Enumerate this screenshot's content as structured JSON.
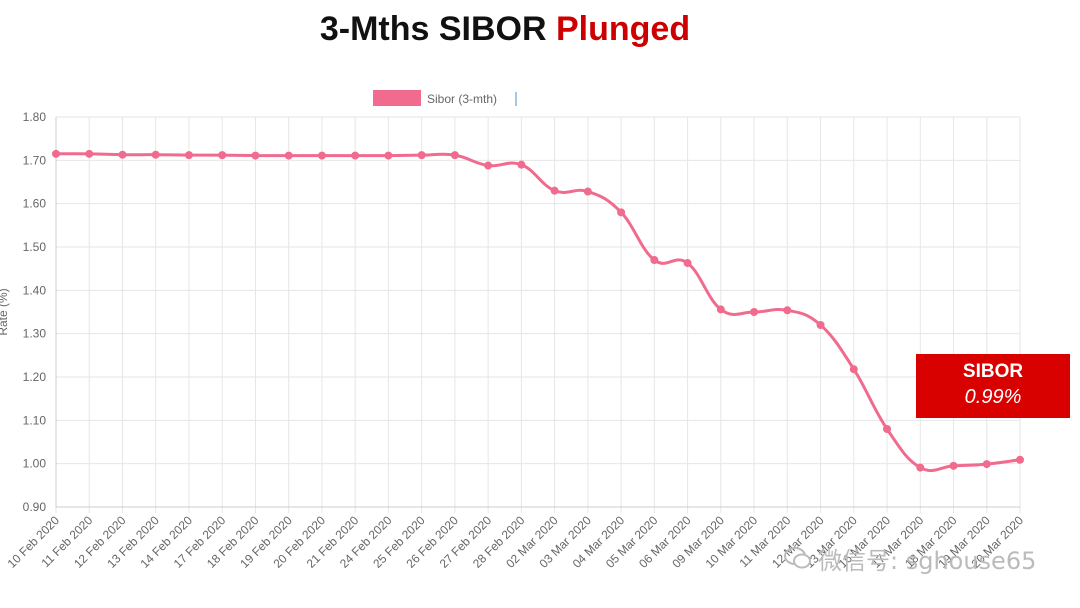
{
  "header": {
    "title_main": "3-Mths SIBOR ",
    "title_accent": "Plunged"
  },
  "callout": {
    "label": "SIBOR",
    "value": "0.99%"
  },
  "watermark": {
    "text": "微信号: sghouse65"
  },
  "colors": {
    "line": "#f06b8e",
    "accent": "#cc0000",
    "callout_bg": "#d90000",
    "grid": "#e6e6e6"
  },
  "chart_data": {
    "type": "line",
    "title": "",
    "xlabel": "",
    "ylabel": "Rate (%)",
    "ylim": [
      0.9,
      1.8
    ],
    "grid": true,
    "legend_position": "top-center",
    "yticks": [
      "1.80",
      "1.70",
      "1.60",
      "1.50",
      "1.40",
      "1.30",
      "1.20",
      "1.10",
      "1.00",
      "0.90"
    ],
    "categories": [
      "10 Feb 2020",
      "11 Feb 2020",
      "12 Feb 2020",
      "13 Feb 2020",
      "14 Feb 2020",
      "17 Feb 2020",
      "18 Feb 2020",
      "19 Feb 2020",
      "20 Feb 2020",
      "21 Feb 2020",
      "24 Feb 2020",
      "25 Feb 2020",
      "26 Feb 2020",
      "27 Feb 2020",
      "28 Feb 2020",
      "02 Mar 2020",
      "03 Mar 2020",
      "04 Mar 2020",
      "05 Mar 2020",
      "06 Mar 2020",
      "09 Mar 2020",
      "10 Mar 2020",
      "11 Mar 2020",
      "12 Mar 2020",
      "13 Mar 2020",
      "16 Mar 2020",
      "17 Mar 2020",
      "18 Mar 2020",
      "19 Mar 2020",
      "20 Mar 2020"
    ],
    "series": [
      {
        "name": "Sibor (3-mth)",
        "values": [
          1.715,
          1.715,
          1.713,
          1.713,
          1.712,
          1.712,
          1.711,
          1.711,
          1.711,
          1.711,
          1.711,
          1.712,
          1.712,
          1.688,
          1.69,
          1.63,
          1.628,
          1.58,
          1.47,
          1.463,
          1.356,
          1.35,
          1.354,
          1.32,
          1.218,
          1.08,
          0.991,
          0.995,
          0.999,
          1.009
        ]
      }
    ]
  }
}
